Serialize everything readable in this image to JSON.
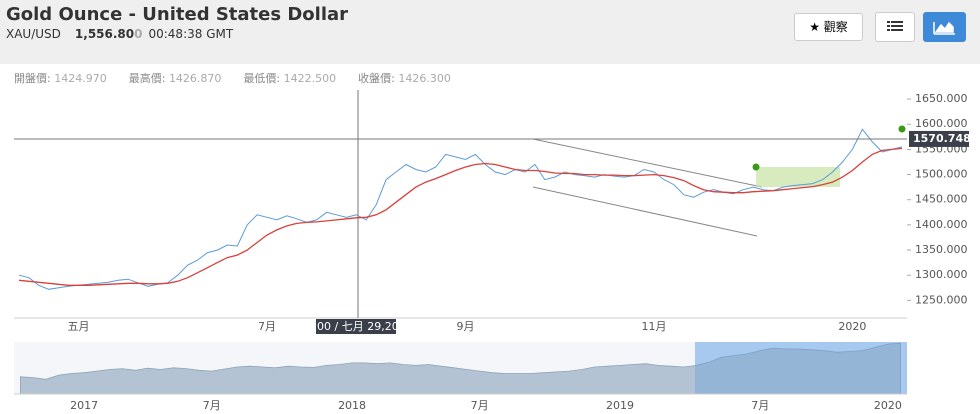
{
  "header": {
    "title": "Gold Ounce - United States Dollar",
    "symbol": "XAU/USD",
    "price": "1,556.80",
    "price_faded": "0",
    "time": "00:48:38 GMT",
    "watch": "觀察"
  },
  "ohlc": [
    {
      "label": "開盤價:",
      "value": "1424.970"
    },
    {
      "label": "最高價:",
      "value": "1426.870"
    },
    {
      "label": "最低價:",
      "value": "1422.500"
    },
    {
      "label": "收盤價:",
      "value": "1426.300"
    }
  ],
  "chart_data": [
    {
      "type": "line",
      "categories": [
        null,
        null,
        null,
        null,
        null,
        null,
        "五月",
        null,
        null,
        null,
        null,
        null,
        null,
        null,
        null,
        null,
        null,
        null,
        null,
        null,
        null,
        null,
        null,
        null,
        null,
        "7月",
        null,
        null,
        null,
        null,
        null,
        null,
        null,
        null,
        null,
        null,
        null,
        null,
        null,
        null,
        null,
        null,
        null,
        null,
        null,
        "9月",
        null,
        null,
        null,
        null,
        null,
        null,
        null,
        null,
        null,
        null,
        null,
        null,
        null,
        null,
        null,
        null,
        null,
        null,
        "11月",
        null,
        null,
        null,
        null,
        null,
        null,
        null,
        null,
        null,
        null,
        null,
        null,
        null,
        null,
        null,
        null,
        null,
        null,
        null,
        "2020",
        null,
        null,
        null,
        null,
        null
      ],
      "series": [
        {
          "color": "#5b9bd5",
          "values": [
            1300,
            1295,
            1280,
            1272,
            1275,
            1278,
            1280,
            1282,
            1284,
            1286,
            1290,
            1292,
            1285,
            1278,
            1282,
            1285,
            1300,
            1320,
            1330,
            1345,
            1350,
            1360,
            1358,
            1400,
            1420,
            1415,
            1410,
            1418,
            1412,
            1405,
            1410,
            1425,
            1420,
            1415,
            1420,
            1410,
            1440,
            1490,
            1505,
            1520,
            1510,
            1505,
            1515,
            1540,
            1535,
            1530,
            1540,
            1520,
            1505,
            1500,
            1510,
            1505,
            1520,
            1490,
            1495,
            1505,
            1500,
            1498,
            1495,
            1500,
            1497,
            1495,
            1498,
            1510,
            1505,
            1490,
            1480,
            1460,
            1455,
            1465,
            1470,
            1465,
            1462,
            1470,
            1475,
            1470,
            1468,
            1475,
            1478,
            1480,
            1482,
            1490,
            1505,
            1525,
            1550,
            1590,
            1565,
            1545,
            1550,
            1555
          ]
        },
        {
          "color": "#d9413a",
          "values": [
            1290,
            1288,
            1286,
            1284,
            1282,
            1280,
            1280,
            1280,
            1281,
            1282,
            1283,
            1284,
            1284,
            1283,
            1283,
            1284,
            1288,
            1295,
            1305,
            1315,
            1325,
            1335,
            1340,
            1350,
            1365,
            1380,
            1390,
            1398,
            1403,
            1405,
            1406,
            1408,
            1410,
            1412,
            1414,
            1415,
            1420,
            1430,
            1445,
            1460,
            1475,
            1485,
            1492,
            1500,
            1508,
            1515,
            1520,
            1522,
            1520,
            1515,
            1510,
            1508,
            1508,
            1506,
            1503,
            1502,
            1502,
            1500,
            1500,
            1499,
            1499,
            1498,
            1498,
            1499,
            1500,
            1498,
            1494,
            1488,
            1478,
            1470,
            1466,
            1465,
            1464,
            1464,
            1466,
            1467,
            1468,
            1470,
            1472,
            1474,
            1476,
            1480,
            1485,
            1495,
            1508,
            1525,
            1540,
            1548,
            1550,
            1552
          ]
        }
      ],
      "ylim": [
        1215,
        1668
      ],
      "yticks": [
        {
          "value": 1250,
          "label": "1250.000"
        },
        {
          "value": 1300,
          "label": "1300.000"
        },
        {
          "value": 1350,
          "label": "1350.000"
        },
        {
          "value": 1400,
          "label": "1400.000"
        },
        {
          "value": 1450,
          "label": "1450.000"
        },
        {
          "value": 1500,
          "label": "1500.000"
        },
        {
          "value": 1550,
          "label": "1550.000"
        },
        {
          "value": 1600,
          "label": "1600.000"
        },
        {
          "value": 1650,
          "label": "1650.000"
        }
      ],
      "crosshair_price": 1570.748,
      "crosshair_date": ":00 / 七月 29,20"
    },
    {
      "type": "area",
      "color": "#b4c3d3",
      "categories": [
        null,
        null,
        null,
        null,
        null,
        "2017",
        null,
        null,
        null,
        null,
        null,
        null,
        null,
        null,
        null,
        "7月",
        null,
        null,
        null,
        null,
        null,
        null,
        null,
        null,
        null,
        null,
        "2018",
        null,
        null,
        null,
        null,
        null,
        null,
        null,
        null,
        null,
        "7月",
        null,
        null,
        null,
        null,
        null,
        null,
        null,
        null,
        null,
        null,
        "2019",
        null,
        null,
        null,
        null,
        null,
        null,
        null,
        null,
        null,
        null,
        "7月",
        null,
        null,
        null,
        null,
        null,
        null,
        null,
        null,
        null,
        "2020",
        null
      ],
      "values": [
        1160,
        1150,
        1130,
        1180,
        1200,
        1210,
        1230,
        1250,
        1260,
        1240,
        1265,
        1250,
        1270,
        1260,
        1240,
        1230,
        1255,
        1280,
        1290,
        1280,
        1270,
        1290,
        1280,
        1275,
        1300,
        1310,
        1330,
        1330,
        1320,
        1330,
        1310,
        1300,
        1310,
        1290,
        1270,
        1250,
        1230,
        1210,
        1200,
        1200,
        1200,
        1210,
        1220,
        1230,
        1250,
        1280,
        1290,
        1300,
        1310,
        1320,
        1300,
        1290,
        1280,
        1300,
        1340,
        1400,
        1420,
        1440,
        1480,
        1510,
        1500,
        1500,
        1490,
        1480,
        1460,
        1470,
        1480,
        1520,
        1560,
        1570
      ],
      "ylim": [
        950,
        1610
      ]
    }
  ]
}
